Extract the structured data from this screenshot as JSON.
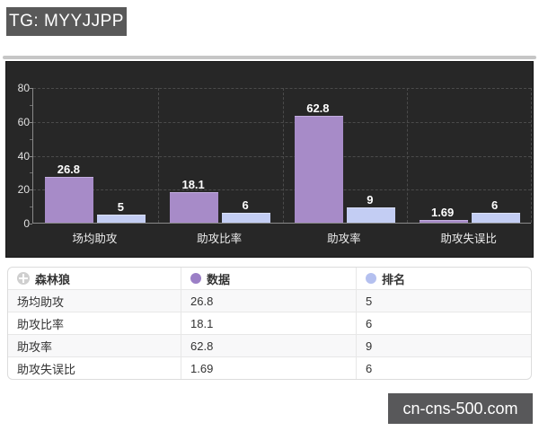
{
  "header": {
    "badge": "TG: MYYJJPP"
  },
  "watermark": {
    "text": "cn-cns-500.com"
  },
  "colors": {
    "data_series": "#a78bc8",
    "data_series_edge": "#c3aee0",
    "rank_series": "#c3cdf3",
    "rank_series_edge": "#d9e0f8",
    "panel_bg": "#272727",
    "data_dot": "#9b7fc6",
    "rank_dot": "#b4c0ef"
  },
  "chart_data": {
    "type": "bar",
    "title": "",
    "categories": [
      "场均助攻",
      "助攻比率",
      "助攻率",
      "助攻失误比"
    ],
    "series": [
      {
        "name": "数据",
        "color": "#a78bc8",
        "values": [
          26.8,
          18.1,
          62.8,
          1.69
        ],
        "labels": [
          "26.8",
          "18.1",
          "62.8",
          "1.69"
        ]
      },
      {
        "name": "排名",
        "color": "#c3cdf3",
        "values": [
          5,
          6,
          9,
          6
        ],
        "labels": [
          "5",
          "6",
          "9",
          "6"
        ]
      }
    ],
    "xlabel": "",
    "ylabel": "",
    "ylim": [
      0,
      80
    ],
    "yticks": [
      0,
      20,
      40,
      60,
      80
    ],
    "minor_tick_step": 10,
    "grid": "dashed",
    "legend_position": "table-below"
  },
  "table": {
    "columns": [
      {
        "label": "森林狼",
        "icon": "team-logo-icon"
      },
      {
        "label": "数据",
        "dot": "data_dot"
      },
      {
        "label": "排名",
        "dot": "rank_dot"
      }
    ],
    "rows": [
      [
        "场均助攻",
        "26.8",
        "5"
      ],
      [
        "助攻比率",
        "18.1",
        "6"
      ],
      [
        "助攻率",
        "62.8",
        "9"
      ],
      [
        "助攻失误比",
        "1.69",
        "6"
      ]
    ]
  }
}
